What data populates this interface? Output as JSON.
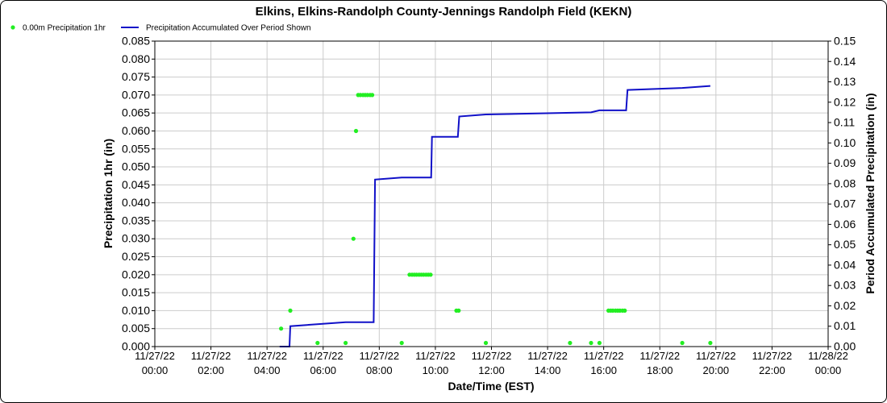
{
  "chart_data": {
    "type": "scatter",
    "title": "Elkins, Elkins-Randolph County-Jennings Randolph Field (KEKN)",
    "xlabel": "Date/Time (EST)",
    "ylabel": "Precipitation 1hr (in)",
    "y2label": "Period Accumulated Precipitation (in)",
    "xlim": [
      0,
      24
    ],
    "ylim": [
      0,
      0.085
    ],
    "y2lim": [
      0,
      0.15
    ],
    "grid": true,
    "legend_placement": "top-left",
    "x_ticks": [
      {
        "v": 0,
        "date": "11/27/22",
        "time": "00:00"
      },
      {
        "v": 2,
        "date": "11/27/22",
        "time": "02:00"
      },
      {
        "v": 4,
        "date": "11/27/22",
        "time": "04:00"
      },
      {
        "v": 6,
        "date": "11/27/22",
        "time": "06:00"
      },
      {
        "v": 8,
        "date": "11/27/22",
        "time": "08:00"
      },
      {
        "v": 10,
        "date": "11/27/22",
        "time": "10:00"
      },
      {
        "v": 12,
        "date": "11/27/22",
        "time": "12:00"
      },
      {
        "v": 14,
        "date": "11/27/22",
        "time": "14:00"
      },
      {
        "v": 16,
        "date": "11/27/22",
        "time": "16:00"
      },
      {
        "v": 18,
        "date": "11/27/22",
        "time": "18:00"
      },
      {
        "v": 20,
        "date": "11/27/22",
        "time": "20:00"
      },
      {
        "v": 22,
        "date": "11/27/22",
        "time": "22:00"
      },
      {
        "v": 24,
        "date": "11/28/22",
        "time": "00:00"
      }
    ],
    "y_ticks": [
      "0.000",
      "0.005",
      "0.010",
      "0.015",
      "0.020",
      "0.025",
      "0.030",
      "0.035",
      "0.040",
      "0.045",
      "0.050",
      "0.055",
      "0.060",
      "0.065",
      "0.070",
      "0.075",
      "0.080",
      "0.085"
    ],
    "y2_ticks": [
      "0.00",
      "0.01",
      "0.02",
      "0.03",
      "0.04",
      "0.05",
      "0.06",
      "0.07",
      "0.08",
      "0.09",
      "0.10",
      "0.11",
      "0.12",
      "0.13",
      "0.14",
      "0.15"
    ],
    "series": [
      {
        "name": "0.00m Precipitation 1hr",
        "kind": "scatter",
        "axis": "left",
        "color": "#22ee22",
        "points": [
          [
            4.5,
            0.005
          ],
          [
            4.83,
            0.01
          ],
          [
            5.8,
            0.001
          ],
          [
            6.8,
            0.001
          ],
          [
            7.08,
            0.03
          ],
          [
            7.17,
            0.06
          ],
          [
            7.25,
            0.07
          ],
          [
            7.33,
            0.07
          ],
          [
            7.42,
            0.07
          ],
          [
            7.5,
            0.07
          ],
          [
            7.58,
            0.07
          ],
          [
            7.67,
            0.07
          ],
          [
            7.75,
            0.07
          ],
          [
            8.8,
            0.001
          ],
          [
            9.08,
            0.02
          ],
          [
            9.17,
            0.02
          ],
          [
            9.25,
            0.02
          ],
          [
            9.33,
            0.02
          ],
          [
            9.42,
            0.02
          ],
          [
            9.5,
            0.02
          ],
          [
            9.58,
            0.02
          ],
          [
            9.67,
            0.02
          ],
          [
            9.75,
            0.02
          ],
          [
            9.83,
            0.02
          ],
          [
            10.75,
            0.01
          ],
          [
            10.83,
            0.01
          ],
          [
            11.8,
            0.001
          ],
          [
            14.8,
            0.001
          ],
          [
            15.55,
            0.001
          ],
          [
            15.85,
            0.001
          ],
          [
            16.17,
            0.01
          ],
          [
            16.25,
            0.01
          ],
          [
            16.33,
            0.01
          ],
          [
            16.42,
            0.01
          ],
          [
            16.5,
            0.01
          ],
          [
            16.58,
            0.01
          ],
          [
            16.67,
            0.01
          ],
          [
            16.75,
            0.01
          ],
          [
            18.8,
            0.001
          ],
          [
            19.8,
            0.001
          ]
        ]
      },
      {
        "name": "Precipitation Accumulated Over Period Shown",
        "kind": "line",
        "axis": "right",
        "color": "#1010c8",
        "points": [
          [
            4.45,
            0
          ],
          [
            4.8,
            0
          ],
          [
            4.83,
            0.01
          ],
          [
            6.8,
            0.012
          ],
          [
            7.8,
            0.012
          ],
          [
            7.85,
            0.082
          ],
          [
            8.8,
            0.083
          ],
          [
            9.85,
            0.083
          ],
          [
            9.88,
            0.103
          ],
          [
            10.8,
            0.103
          ],
          [
            10.85,
            0.113
          ],
          [
            11.8,
            0.114
          ],
          [
            15.55,
            0.115
          ],
          [
            15.85,
            0.116
          ],
          [
            16.8,
            0.116
          ],
          [
            16.85,
            0.126
          ],
          [
            18.8,
            0.127
          ],
          [
            19.8,
            0.128
          ]
        ]
      }
    ]
  }
}
